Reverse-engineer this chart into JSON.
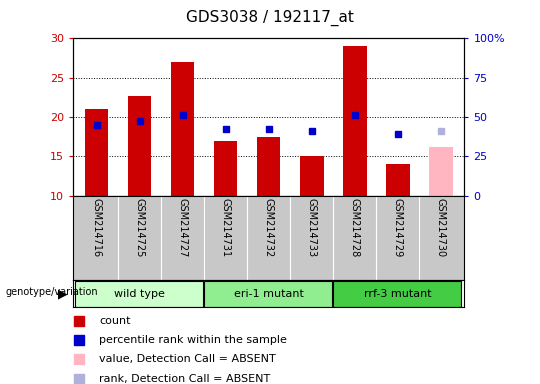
{
  "title": "GDS3038 / 192117_at",
  "samples": [
    "GSM214716",
    "GSM214725",
    "GSM214727",
    "GSM214731",
    "GSM214732",
    "GSM214733",
    "GSM214728",
    "GSM214729",
    "GSM214730"
  ],
  "counts": [
    21.0,
    22.7,
    27.0,
    17.0,
    17.5,
    15.0,
    29.0,
    14.0,
    null
  ],
  "ranks": [
    19.0,
    19.5,
    20.3,
    18.5,
    18.5,
    18.3,
    20.3,
    17.8,
    null
  ],
  "absent_value": [
    null,
    null,
    null,
    null,
    null,
    null,
    null,
    null,
    16.2
  ],
  "absent_rank": [
    null,
    null,
    null,
    null,
    null,
    null,
    null,
    null,
    18.3
  ],
  "groups": [
    {
      "label": "wild type",
      "start": 0,
      "end": 3,
      "color": "#ccffcc"
    },
    {
      "label": "eri-1 mutant",
      "start": 3,
      "end": 6,
      "color": "#90ee90"
    },
    {
      "label": "rrf-3 mutant",
      "start": 6,
      "end": 9,
      "color": "#44cc44"
    }
  ],
  "ylim_left": [
    10,
    30
  ],
  "ylim_right": [
    0,
    100
  ],
  "yticks_left": [
    10,
    15,
    20,
    25,
    30
  ],
  "yticks_right": [
    0,
    25,
    50,
    75,
    100
  ],
  "bar_color": "#cc0000",
  "absent_bar_color": "#ffb6c1",
  "rank_color": "#0000cc",
  "absent_rank_color": "#b0b0dd",
  "bg_color": "#c8c8c8",
  "left_tick_color": "#cc0000",
  "right_tick_color": "#0000cc",
  "right_tick_labels": [
    "0",
    "25",
    "50",
    "75",
    "100%"
  ]
}
